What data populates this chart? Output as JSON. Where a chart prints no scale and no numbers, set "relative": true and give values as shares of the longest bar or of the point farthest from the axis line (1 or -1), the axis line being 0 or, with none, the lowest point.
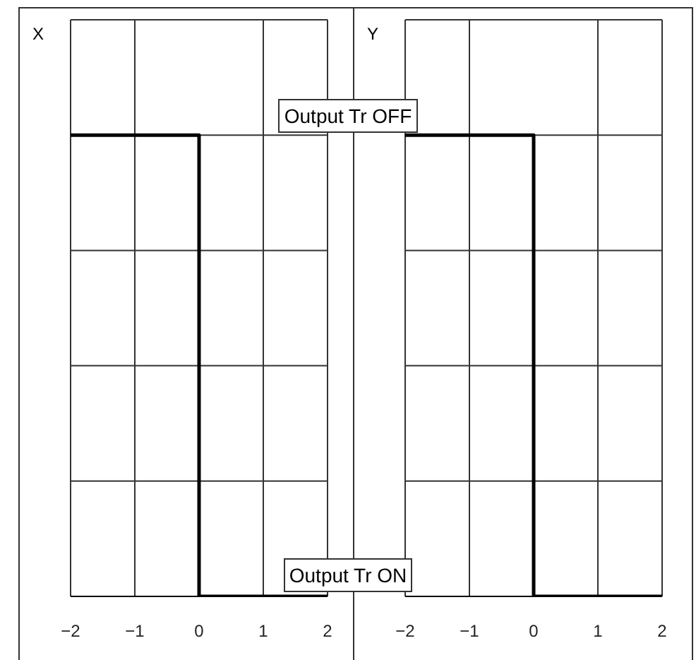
{
  "chart_data": [
    {
      "type": "step",
      "title": "X",
      "relative": true,
      "x": [
        -2,
        0,
        2
      ],
      "xlim": [
        -2,
        2
      ],
      "xticks": [
        -2,
        -1,
        0,
        1,
        2
      ],
      "grid": true,
      "legend": false,
      "marker": "none",
      "series": [
        {
          "color": "#000000",
          "values": [
            1,
            0,
            0
          ]
        }
      ],
      "annotations": [
        "Output Tr OFF",
        "Output Tr ON"
      ]
    },
    {
      "type": "step",
      "title": "Y",
      "relative": true,
      "x": [
        -2,
        0,
        2
      ],
      "xlim": [
        -2,
        2
      ],
      "xticks": [
        -2,
        -1,
        0,
        1,
        2
      ],
      "grid": true,
      "legend": false,
      "marker": "none",
      "series": [
        {
          "color": "#000000",
          "values": [
            1,
            0,
            0
          ]
        }
      ]
    }
  ]
}
